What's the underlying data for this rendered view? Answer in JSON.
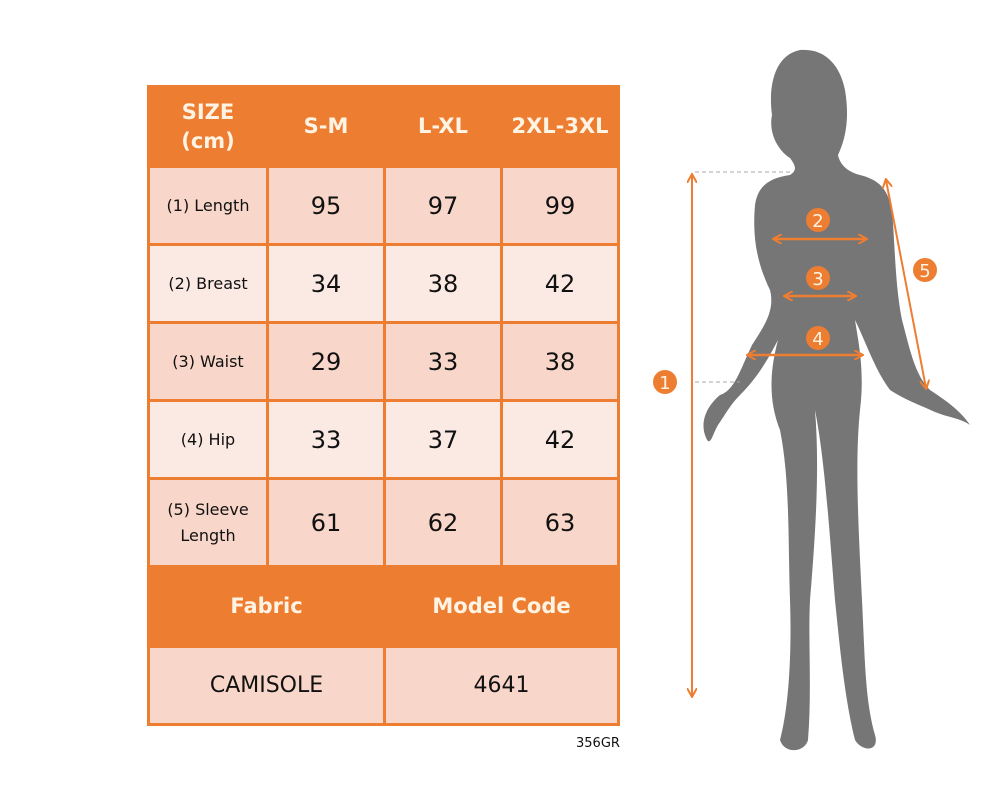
{
  "table": {
    "header": [
      "SIZE\n(cm)",
      "S-M",
      "L-XL",
      "2XL-3XL"
    ],
    "header_size_line1": "SIZE",
    "header_size_line2": "(cm)",
    "rows": [
      {
        "label": "(1) Length",
        "values": [
          "95",
          "97",
          "99"
        ]
      },
      {
        "label": "(2) Breast",
        "values": [
          "34",
          "38",
          "42"
        ]
      },
      {
        "label": "(3) Waist",
        "values": [
          "29",
          "33",
          "38"
        ]
      },
      {
        "label": "(4) Hip",
        "values": [
          "33",
          "37",
          "42"
        ]
      },
      {
        "label_line1": "(5) Sleeve",
        "label_line2": "Length",
        "values": [
          "61",
          "62",
          "63"
        ]
      }
    ],
    "footer_headers": [
      "Fabric",
      "Model Code"
    ],
    "footer_values": [
      "CAMISOLE",
      "4641"
    ]
  },
  "code": "356GR",
  "figure": {
    "markers": [
      "1",
      "2",
      "3",
      "4",
      "5"
    ]
  },
  "colors": {
    "accent": "#ED7D31",
    "row_dark": "#F8D7CA",
    "row_light": "#FBEAE3",
    "silhouette": "#767676"
  }
}
